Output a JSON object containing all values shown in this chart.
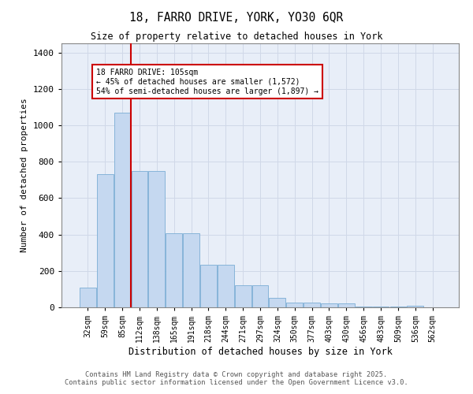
{
  "title_line1": "18, FARRO DRIVE, YORK, YO30 6QR",
  "title_line2": "Size of property relative to detached houses in York",
  "xlabel": "Distribution of detached houses by size in York",
  "ylabel": "Number of detached properties",
  "categories": [
    "32sqm",
    "59sqm",
    "85sqm",
    "112sqm",
    "138sqm",
    "165sqm",
    "191sqm",
    "218sqm",
    "244sqm",
    "271sqm",
    "297sqm",
    "324sqm",
    "350sqm",
    "377sqm",
    "403sqm",
    "430sqm",
    "456sqm",
    "483sqm",
    "509sqm",
    "536sqm",
    "562sqm"
  ],
  "values": [
    110,
    730,
    1070,
    750,
    750,
    405,
    405,
    235,
    235,
    120,
    120,
    50,
    28,
    28,
    20,
    20,
    5,
    5,
    5,
    10,
    0
  ],
  "bar_color": "#c5d8f0",
  "bar_edge_color": "#7aadd4",
  "grid_color": "#d0d8e8",
  "background_color": "#e8eef8",
  "vline_color": "#cc0000",
  "annotation_box_text": "18 FARRO DRIVE: 105sqm\n← 45% of detached houses are smaller (1,572)\n54% of semi-detached houses are larger (1,897) →",
  "footer_line1": "Contains HM Land Registry data © Crown copyright and database right 2025.",
  "footer_line2": "Contains public sector information licensed under the Open Government Licence v3.0.",
  "ylim": [
    0,
    1450
  ],
  "yticks": [
    0,
    200,
    400,
    600,
    800,
    1000,
    1200,
    1400
  ]
}
